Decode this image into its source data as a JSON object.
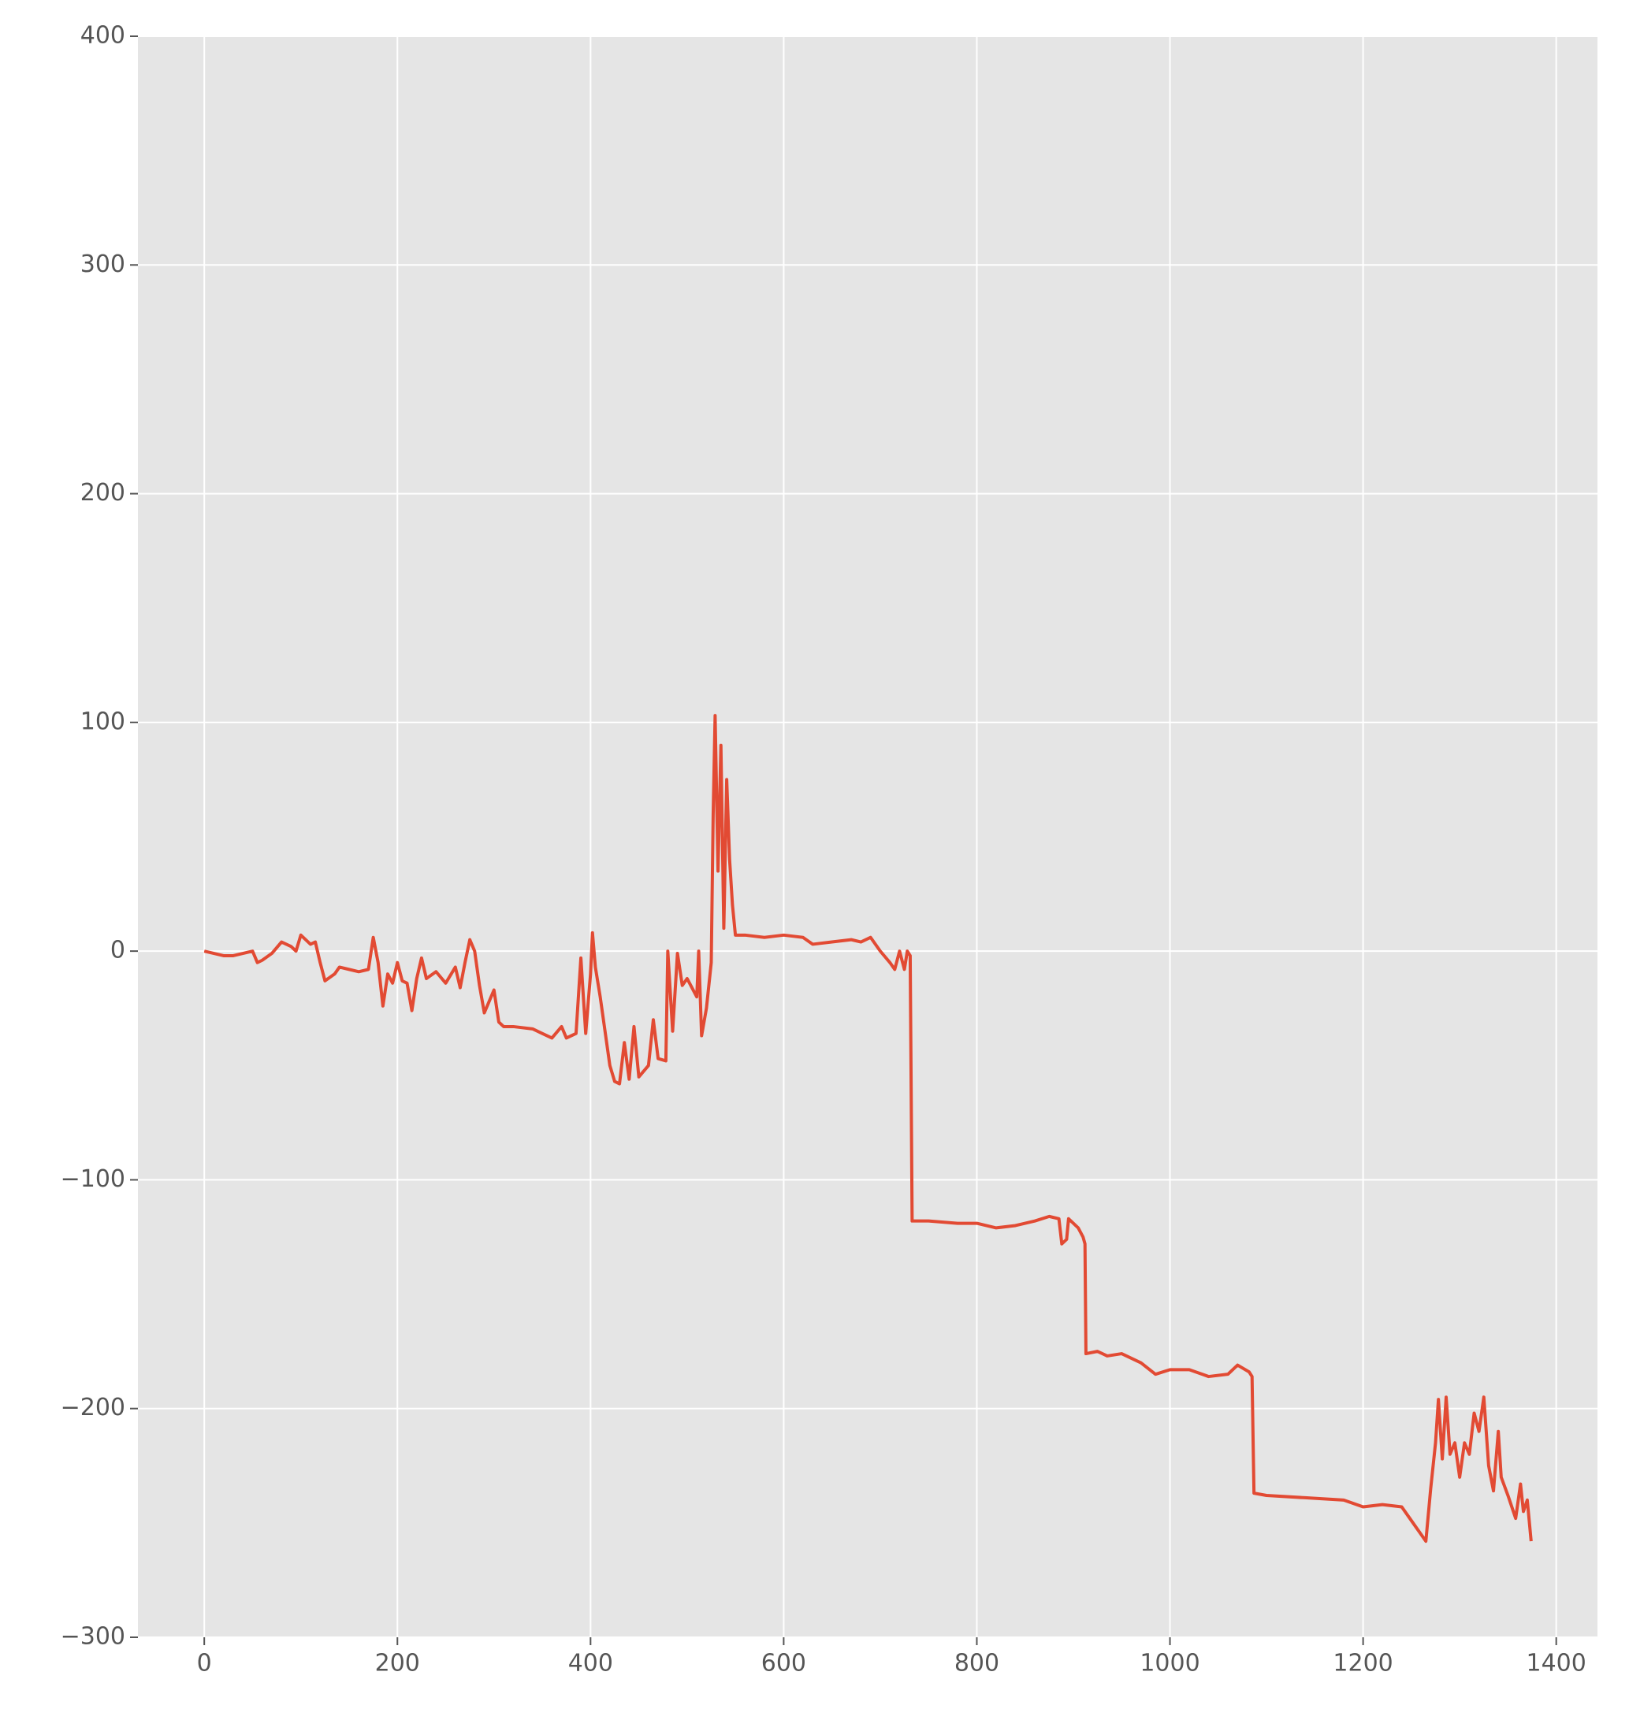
{
  "chart_data": {
    "type": "line",
    "x": [
      0,
      10,
      20,
      30,
      40,
      50,
      55,
      60,
      70,
      80,
      90,
      95,
      100,
      110,
      115,
      120,
      125,
      135,
      140,
      150,
      160,
      170,
      175,
      180,
      185,
      190,
      195,
      200,
      205,
      210,
      215,
      220,
      225,
      230,
      240,
      250,
      260,
      265,
      270,
      275,
      280,
      285,
      290,
      300,
      305,
      310,
      320,
      340,
      350,
      360,
      370,
      375,
      385,
      390,
      395,
      400,
      402,
      405,
      410,
      420,
      425,
      430,
      435,
      440,
      445,
      450,
      460,
      465,
      470,
      478,
      480,
      485,
      490,
      495,
      500,
      510,
      512,
      515,
      520,
      525,
      527,
      529,
      532,
      535,
      538,
      541,
      544,
      547,
      550,
      560,
      580,
      600,
      620,
      630,
      650,
      670,
      680,
      690,
      700,
      710,
      715,
      720,
      725,
      728,
      731,
      733,
      750,
      780,
      800,
      820,
      840,
      860,
      875,
      885,
      888,
      893,
      895,
      905,
      910,
      912,
      913,
      925,
      935,
      950,
      970,
      985,
      1000,
      1020,
      1040,
      1060,
      1070,
      1082,
      1085,
      1087,
      1100,
      1140,
      1180,
      1200,
      1220,
      1240,
      1250,
      1260,
      1265,
      1270,
      1275,
      1278,
      1282,
      1286,
      1290,
      1295,
      1300,
      1305,
      1310,
      1315,
      1320,
      1325,
      1330,
      1335,
      1340,
      1343,
      1350,
      1358,
      1363,
      1366,
      1370,
      1374
    ],
    "values": [
      0,
      -1,
      -2,
      -2,
      -1,
      0,
      -5,
      -4,
      -1,
      4,
      2,
      0,
      7,
      3,
      4,
      -5,
      -13,
      -10,
      -7,
      -8,
      -9,
      -8,
      6,
      -5,
      -24,
      -10,
      -14,
      -5,
      -13,
      -14,
      -26,
      -12,
      -3,
      -12,
      -9,
      -14,
      -7,
      -16,
      -5,
      5,
      0,
      -15,
      -27,
      -17,
      -31,
      -33,
      -33,
      -34,
      -36,
      -38,
      -33,
      -38,
      -36,
      -3,
      -36,
      -10,
      8,
      -7,
      -20,
      -50,
      -57,
      -58,
      -40,
      -56,
      -33,
      -55,
      -50,
      -30,
      -47,
      -48,
      0,
      -35,
      -1,
      -15,
      -12,
      -20,
      0,
      -37,
      -25,
      -5,
      60,
      103,
      35,
      90,
      10,
      75,
      40,
      20,
      7,
      7,
      6,
      7,
      6,
      3,
      4,
      5,
      4,
      6,
      0,
      -5,
      -8,
      0,
      -8,
      0,
      -2,
      -118,
      -118,
      -119,
      -119,
      -121,
      -120,
      -118,
      -116,
      -117,
      -128,
      -126,
      -117,
      -121,
      -125,
      -128,
      -176,
      -175,
      -177,
      -176,
      -180,
      -185,
      -183,
      -183,
      -186,
      -185,
      -181,
      -184,
      -186,
      -237,
      -238,
      -239,
      -240,
      -243,
      -242,
      -243,
      -249,
      -255,
      -258,
      -235,
      -215,
      -196,
      -222,
      -195,
      -220,
      -215,
      -230,
      -215,
      -220,
      -202,
      -210,
      -195,
      -225,
      -236,
      -210,
      -230,
      -238,
      -248,
      -233,
      -245,
      -240,
      -258
    ],
    "color": "#e24a33",
    "xlim": [
      -68.7,
      1442.7
    ],
    "ylim": [
      -300,
      400
    ],
    "xticks": [
      0,
      200,
      400,
      600,
      800,
      1000,
      1200,
      1400
    ],
    "yticks": [
      {
        "value": -300,
        "label": "−300"
      },
      {
        "value": -200,
        "label": "−200"
      },
      {
        "value": -100,
        "label": "−100"
      },
      0,
      100,
      200,
      300,
      400
    ],
    "grid": true
  }
}
